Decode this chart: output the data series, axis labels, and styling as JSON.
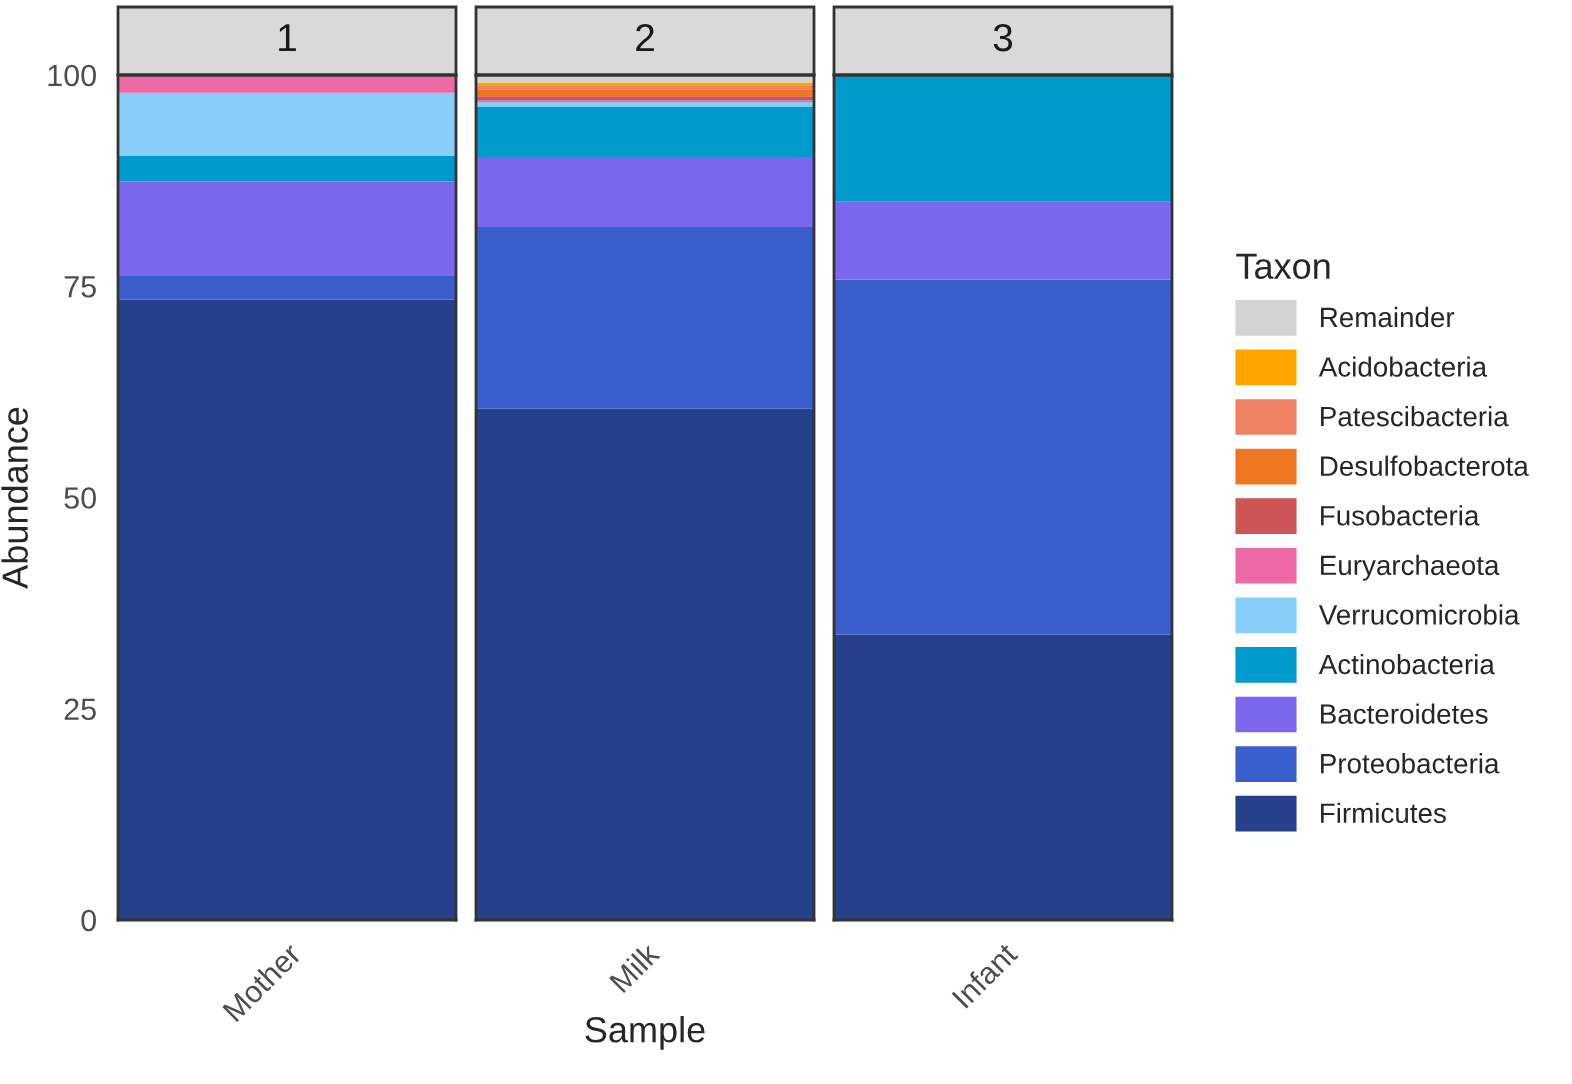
{
  "chart_data": [
    {
      "type": "bar",
      "title": "1",
      "ylabel": "Abundance",
      "categories": [
        "Mother"
      ],
      "stacked": true,
      "ylim": [
        0,
        100
      ],
      "yticks": [
        0,
        25,
        50,
        75,
        100
      ],
      "grid": false,
      "legend": "right",
      "legend_title": "Taxon",
      "series": [
        {
          "name": "Firmicutes",
          "color": "#27408b",
          "values": [
            73.4
          ]
        },
        {
          "name": "Proteobacteria",
          "color": "#3a5fcd",
          "values": [
            2.8
          ]
        },
        {
          "name": "Bacteroidetes",
          "color": "#7b68ee",
          "values": [
            11.2
          ]
        },
        {
          "name": "Actinobacteria",
          "color": "#009acd",
          "values": [
            3.0
          ]
        },
        {
          "name": "Verrucomicrobia",
          "color": "#87cefa",
          "values": [
            7.5
          ]
        },
        {
          "name": "Euryarchaeota",
          "color": "#ee6aa7",
          "values": [
            2.1
          ]
        },
        {
          "name": "Fusobacteria",
          "color": "#cd5555",
          "values": [
            0
          ]
        },
        {
          "name": "Desulfobacterota",
          "color": "#ee7621",
          "values": [
            0
          ]
        },
        {
          "name": "Patescibacteria",
          "color": "#ee8262",
          "values": [
            0
          ]
        },
        {
          "name": "Acidobacteria",
          "color": "#ffa500",
          "values": [
            0
          ]
        },
        {
          "name": "Remainder",
          "color": "#d3d3d3",
          "values": [
            0
          ]
        }
      ]
    },
    {
      "type": "bar",
      "title": "2",
      "xlabel": "Sample",
      "categories": [
        "Milk"
      ],
      "stacked": true,
      "ylim": [
        0,
        100
      ],
      "yticks": [
        0,
        25,
        50,
        75,
        100
      ],
      "tick_labels": "x",
      "grid": false,
      "series": [
        {
          "color": "#27408b",
          "values": [
            60.5
          ]
        },
        {
          "color": "#3a5fcd",
          "values": [
            21.5
          ]
        },
        {
          "color": "#7b68ee",
          "values": [
            8.3
          ]
        },
        {
          "color": "#009acd",
          "values": [
            5.9
          ]
        },
        {
          "color": "#87cefa",
          "values": [
            0.6
          ]
        },
        {
          "color": "#ee6aa7",
          "values": [
            0.2
          ]
        },
        {
          "color": "#cd5555",
          "values": [
            0.5
          ]
        },
        {
          "color": "#ee7621",
          "values": [
            0.8
          ]
        },
        {
          "color": "#ee8262",
          "values": [
            0.4
          ]
        },
        {
          "color": "#ffa500",
          "values": [
            0.4
          ]
        },
        {
          "color": "#d3d3d3",
          "values": [
            0.9
          ]
        }
      ]
    },
    {
      "type": "bar",
      "title": "3",
      "categories": [
        "Infant"
      ],
      "stacked": true,
      "ylim": [
        0,
        100
      ],
      "yticks": [
        0,
        25,
        50,
        75,
        100
      ],
      "tick_labels": "x",
      "grid": false,
      "series": [
        {
          "color": "#27408b",
          "values": [
            33.8
          ]
        },
        {
          "color": "#3a5fcd",
          "values": [
            42.0
          ]
        },
        {
          "color": "#7b68ee",
          "values": [
            9.2
          ]
        },
        {
          "color": "#009acd",
          "values": [
            15.0
          ]
        },
        {
          "color": "#87cefa",
          "values": [
            0
          ]
        },
        {
          "color": "#ee6aa7",
          "values": [
            0
          ]
        },
        {
          "color": "#cd5555",
          "values": [
            0
          ]
        },
        {
          "color": "#ee7621",
          "values": [
            0
          ]
        },
        {
          "color": "#ee8262",
          "values": [
            0
          ]
        },
        {
          "color": "#ffa500",
          "values": [
            0
          ]
        },
        {
          "color": "#d3d3d3",
          "values": [
            0
          ]
        }
      ]
    }
  ]
}
